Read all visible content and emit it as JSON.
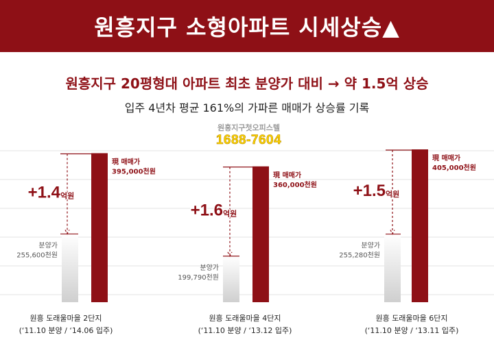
{
  "header": {
    "title": "원흥지구 소형아파트 시세상승▲"
  },
  "headline": "원흥지구 20평형대 아파트 최초 분양가 대비 → 약 1.5억 상승",
  "subline": "입주 4년차 평균 161%의 가파른 매매가 상승률 기록",
  "watermark": {
    "name": "원흥지구첫오피스텔",
    "phone": "1688-7604"
  },
  "colors": {
    "accent": "#8e1016",
    "header_bg": "#8e1016",
    "phone": "#ffd400"
  },
  "chart_data": {
    "type": "bar",
    "unit": "천원",
    "groups": [
      {
        "name": "원흥 도래울마을 2단지",
        "period": "(‘11.10 분양 / ‘14.06 입주)",
        "base_label": "분양가",
        "base_text": "255,600천원",
        "base_value": 255600,
        "now_label": "現 매매가",
        "now_text": "395,000천원",
        "now_value": 395000,
        "delta_num": "+1.4",
        "delta_unit": "억원"
      },
      {
        "name": "원흥 도래울마을 4단지",
        "period": "(‘11.10 분양 / ‘13.12 입주)",
        "base_label": "분양가",
        "base_text": "199,790천원",
        "base_value": 199790,
        "now_label": "現 매매가",
        "now_text": "360,000천원",
        "now_value": 360000,
        "delta_num": "+1.6",
        "delta_unit": "억원"
      },
      {
        "name": "원흥 도래울마을 6단지",
        "period": "(‘11.10 분양 / ‘13.11 입주)",
        "base_label": "분양가",
        "base_text": "255,280천원",
        "base_value": 255280,
        "now_label": "現 매매가",
        "now_text": "405,000천원",
        "now_value": 405000,
        "delta_num": "+1.5",
        "delta_unit": "억원"
      }
    ]
  }
}
